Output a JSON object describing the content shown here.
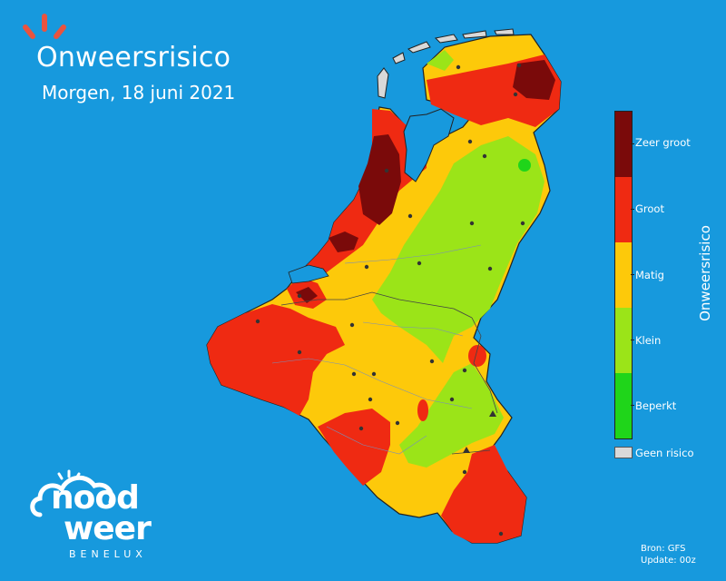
{
  "header": {
    "title": "Onweersrisico",
    "subtitle": "Morgen, 18 juni 2021"
  },
  "legend": {
    "title": "Onweersrisico",
    "levels": [
      {
        "label": "Zeer groot",
        "color": "#7a0a0a"
      },
      {
        "label": "Groot",
        "color": "#ef2a12"
      },
      {
        "label": "Matig",
        "color": "#fdc90a"
      },
      {
        "label": "Klein",
        "color": "#9be418"
      },
      {
        "label": "Beperkt",
        "color": "#1fd51a"
      }
    ],
    "none_label": "Geen risico",
    "none_color": "#d9d9d9"
  },
  "source": {
    "line1": "Bron: GFS",
    "line2": "Update: 00z"
  },
  "logo": {
    "line1": "nood",
    "line2": "weer",
    "sub": "BENELUX"
  },
  "colors": {
    "background": "#1799dd",
    "accent": "#e9533f"
  }
}
